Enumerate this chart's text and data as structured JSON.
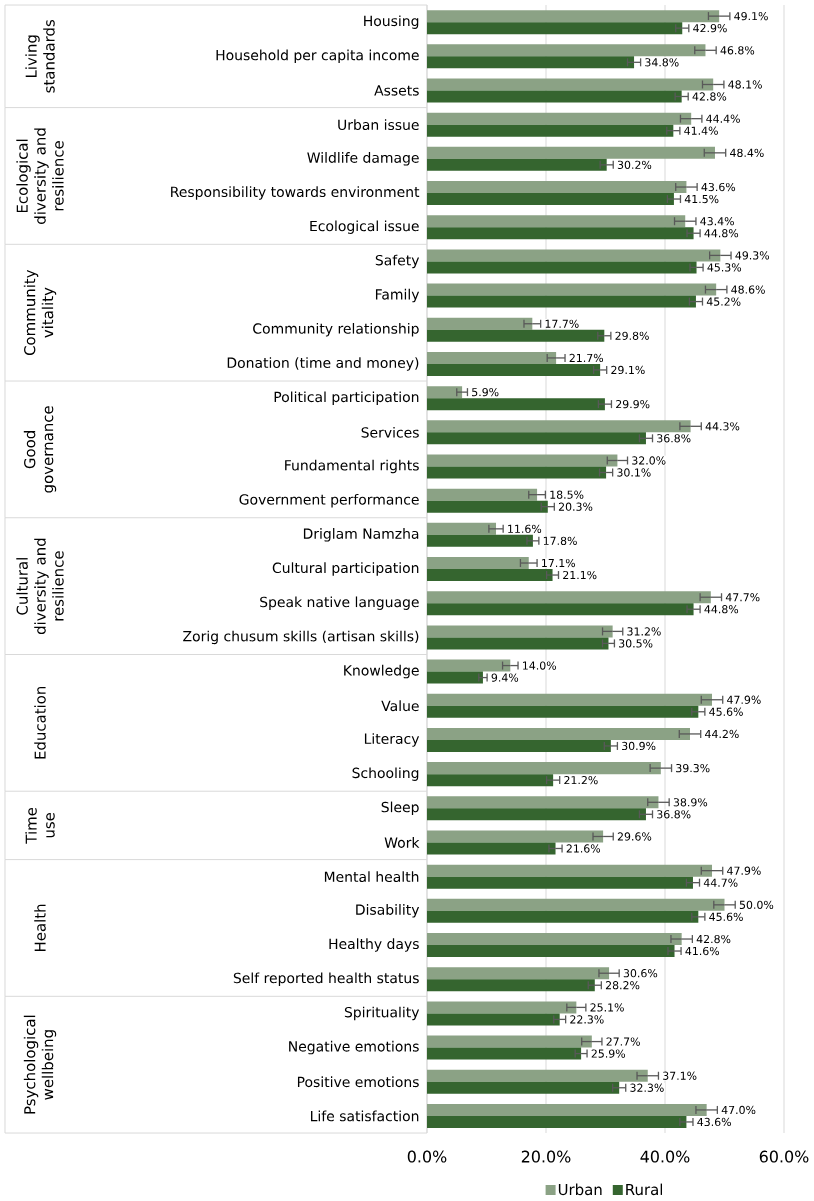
{
  "chart_data": {
    "type": "bar",
    "orientation": "horizontal",
    "categories": [
      "Housing",
      "Household per capita income",
      "Assets",
      "Urban issue",
      "Wildlife damage",
      "Responsibility towards environment",
      "Ecological issue",
      "Safety",
      "Family",
      "Community relationship",
      "Donation (time and money)",
      "Political participation",
      "Services",
      "Fundamental rights",
      "Government performance",
      "Driglam Namzha",
      "Cultural participation",
      "Speak native language",
      "Zorig chusum skills (artisan skills)",
      "Knowledge",
      "Value",
      "Literacy",
      "Schooling",
      "Sleep",
      "Work",
      "Mental health",
      "Disability",
      "Healthy days",
      "Self reported health status",
      "Spirituality",
      "Negative emotions",
      "Positive emotions",
      "Life satisfaction"
    ],
    "series": [
      {
        "name": "Urban",
        "color": "#8ba285",
        "values": [
          49.1,
          46.8,
          48.1,
          44.4,
          48.4,
          43.6,
          43.4,
          49.3,
          48.6,
          17.7,
          21.7,
          5.9,
          44.3,
          32.0,
          18.5,
          11.6,
          17.1,
          47.7,
          31.2,
          14.0,
          47.9,
          44.2,
          39.3,
          38.9,
          29.6,
          47.9,
          50.0,
          42.8,
          30.6,
          25.1,
          27.7,
          37.1,
          47.0
        ],
        "errors": [
          1.8,
          1.8,
          1.8,
          1.8,
          1.8,
          1.8,
          1.8,
          1.8,
          1.8,
          1.4,
          1.5,
          0.9,
          1.8,
          1.7,
          1.4,
          1.2,
          1.4,
          1.8,
          1.7,
          1.3,
          1.8,
          1.8,
          1.8,
          1.8,
          1.7,
          1.8,
          1.8,
          1.8,
          1.7,
          1.6,
          1.7,
          1.8,
          1.8
        ],
        "value_labels": [
          "49.1%",
          "46.8%",
          "48.1%",
          "44.4%",
          "48.4%",
          "43.6%",
          "43.4%",
          "49.3%",
          "48.6%",
          "17.7%",
          "21.7%",
          "5.9%",
          "44.3%",
          "32.0%",
          "18.5%",
          "11.6%",
          "17.1%",
          "47.7%",
          "31.2%",
          "14.0%",
          "47.9%",
          "44.2%",
          "39.3%",
          "38.9%",
          "29.6%",
          "47.9%",
          "50.0%",
          "42.8%",
          "30.6%",
          "25.1%",
          "27.7%",
          "37.1%",
          "47.0%"
        ]
      },
      {
        "name": "Rural",
        "color": "#35652f",
        "values": [
          42.9,
          34.8,
          42.8,
          41.4,
          30.2,
          41.5,
          44.8,
          45.3,
          45.2,
          29.8,
          29.1,
          29.9,
          36.8,
          30.1,
          20.3,
          17.8,
          21.1,
          44.8,
          30.5,
          9.4,
          45.6,
          30.9,
          21.2,
          36.8,
          21.6,
          44.7,
          45.6,
          41.6,
          28.2,
          22.3,
          25.9,
          32.3,
          43.6
        ],
        "errors": [
          1.1,
          1.1,
          1.1,
          1.1,
          1.1,
          1.1,
          1.1,
          1.1,
          1.1,
          1.1,
          1.1,
          1.1,
          1.1,
          1.1,
          1.1,
          1.0,
          1.0,
          1.1,
          1.0,
          0.7,
          1.1,
          1.1,
          1.1,
          1.1,
          1.1,
          1.1,
          1.1,
          1.1,
          1.1,
          1.0,
          1.0,
          1.1,
          1.1
        ],
        "value_labels": [
          "42.9%",
          "34.8%",
          "42.8%",
          "41.4%",
          "30.2%",
          "41.5%",
          "44.8%",
          "45.3%",
          "45.2%",
          "29.8%",
          "29.1%",
          "29.9%",
          "36.8%",
          "30.1%",
          "20.3%",
          "17.8%",
          "21.1%",
          "44.8%",
          "30.5%",
          "9.4%",
          "45.6%",
          "30.9%",
          "21.2%",
          "36.8%",
          "21.6%",
          "44.7%",
          "45.6%",
          "41.6%",
          "28.2%",
          "22.3%",
          "25.9%",
          "32.3%",
          "43.6%"
        ]
      }
    ],
    "xlim": [
      0,
      60
    ],
    "xticks": [
      {
        "value": 0,
        "label": "0.0%"
      },
      {
        "value": 20,
        "label": "20.0%"
      },
      {
        "value": 40,
        "label": "40.0%"
      },
      {
        "value": 60,
        "label": "60.0%"
      }
    ],
    "grid": "x",
    "legend": "bottom",
    "annotations": [
      "Living standards",
      "Ecological diversity and resilience",
      "Community vitality",
      "Good governance",
      "Cultural diversity and resilience",
      "Education",
      "Time use",
      "Health",
      "Psychological wellbeing"
    ]
  }
}
